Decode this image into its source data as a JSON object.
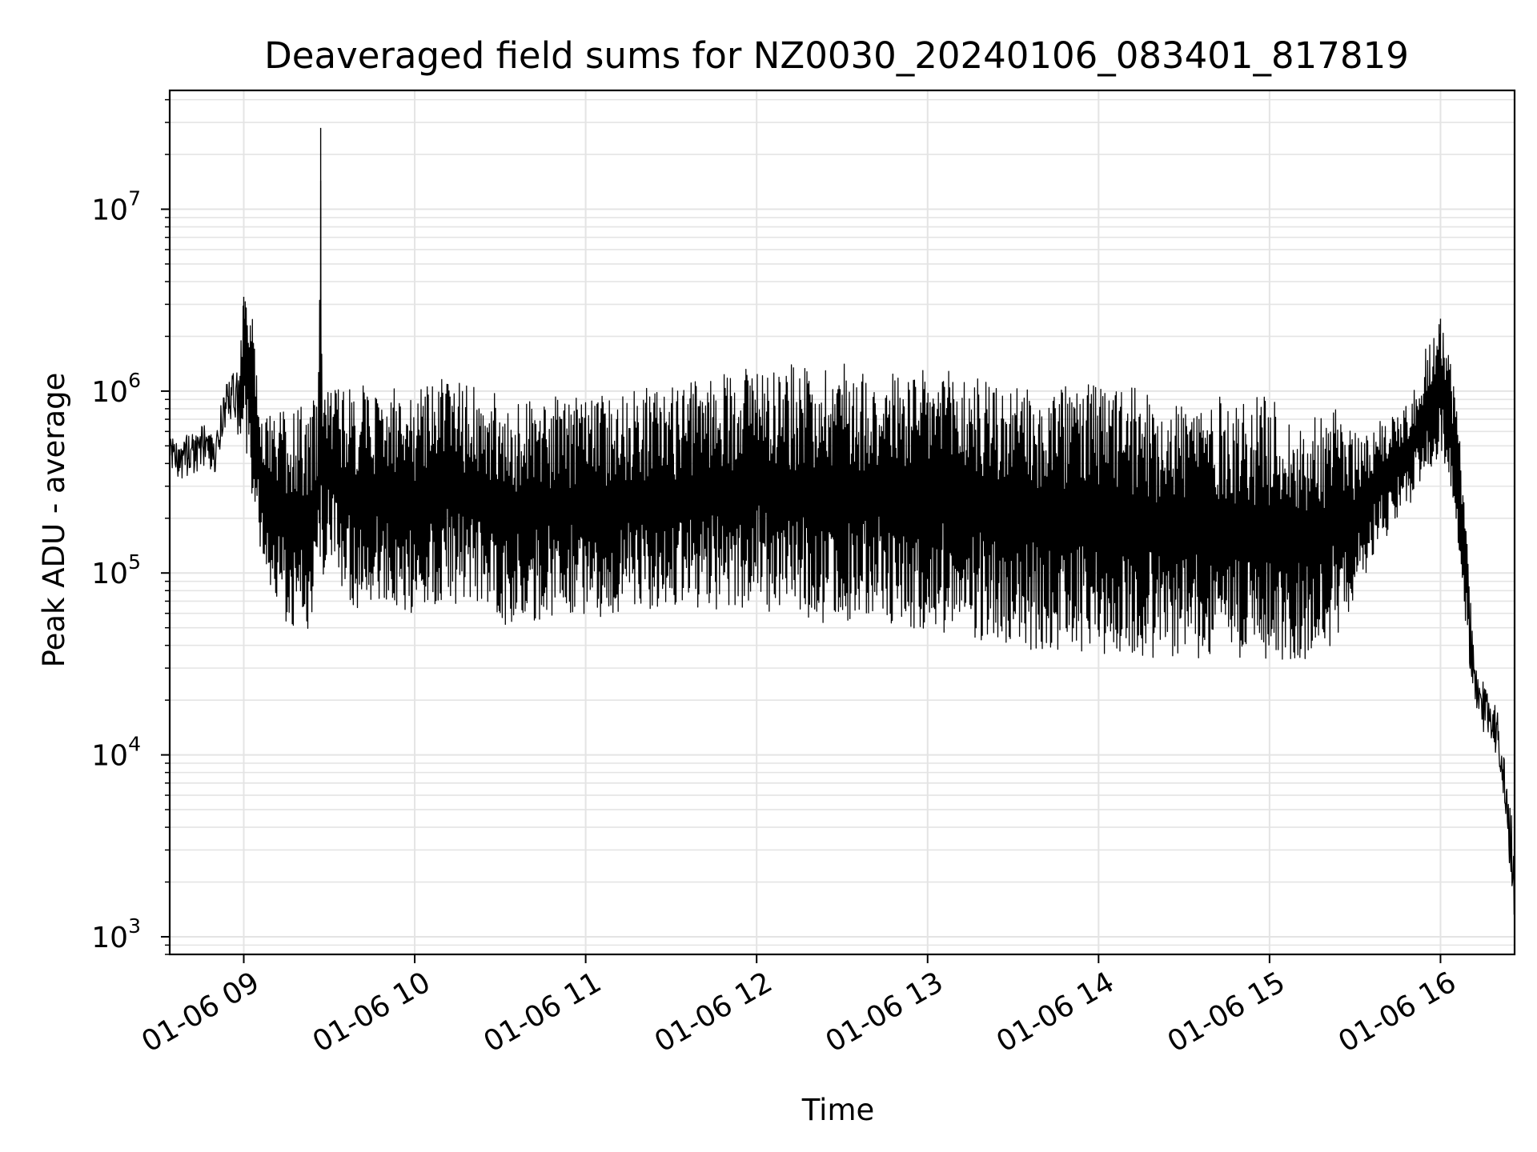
{
  "chart_data": {
    "type": "line",
    "title": "Deaveraged field sums for NZ0030_20240106_083401_817819",
    "xlabel": "Time",
    "ylabel": "Peak ADU - average",
    "yscale": "log",
    "ylim": [
      800,
      45000000
    ],
    "xlim": [
      "2024-01-06T08:34:01",
      "2024-01-06T16:26:00"
    ],
    "grid": true,
    "line_color": "#000000",
    "x_ticks": [
      {
        "value": "2024-01-06T09:00",
        "label": "01-06 09"
      },
      {
        "value": "2024-01-06T10:00",
        "label": "01-06 10"
      },
      {
        "value": "2024-01-06T11:00",
        "label": "01-06 11"
      },
      {
        "value": "2024-01-06T12:00",
        "label": "01-06 12"
      },
      {
        "value": "2024-01-06T13:00",
        "label": "01-06 13"
      },
      {
        "value": "2024-01-06T14:00",
        "label": "01-06 14"
      },
      {
        "value": "2024-01-06T15:00",
        "label": "01-06 15"
      },
      {
        "value": "2024-01-06T16:00",
        "label": "01-06 16"
      }
    ],
    "y_ticks": [
      {
        "value": 1000,
        "base": "10",
        "exp": "3"
      },
      {
        "value": 10000,
        "base": "10",
        "exp": "4"
      },
      {
        "value": 100000,
        "base": "10",
        "exp": "5"
      },
      {
        "value": 1000000,
        "base": "10",
        "exp": "6"
      },
      {
        "value": 10000000,
        "base": "10",
        "exp": "7"
      }
    ],
    "series": [
      {
        "x": [
          "2024-01-06T08:34",
          "2024-01-06T08:38",
          "2024-01-06T08:42",
          "2024-01-06T08:46",
          "2024-01-06T08:50",
          "2024-01-06T08:54",
          "2024-01-06T08:58",
          "2024-01-06T09:00",
          "2024-01-06T09:03",
          "2024-01-06T09:06",
          "2024-01-06T09:10",
          "2024-01-06T09:14",
          "2024-01-06T09:18",
          "2024-01-06T09:22",
          "2024-01-06T09:26",
          "2024-01-06T09:27",
          "2024-01-06T09:28",
          "2024-01-06T09:30",
          "2024-01-06T09:35",
          "2024-01-06T09:40",
          "2024-01-06T09:45",
          "2024-01-06T09:50",
          "2024-01-06T09:55",
          "2024-01-06T10:00",
          "2024-01-06T10:10",
          "2024-01-06T10:20",
          "2024-01-06T10:30",
          "2024-01-06T10:40",
          "2024-01-06T10:50",
          "2024-01-06T11:00",
          "2024-01-06T11:10",
          "2024-01-06T11:20",
          "2024-01-06T11:30",
          "2024-01-06T11:40",
          "2024-01-06T11:50",
          "2024-01-06T12:00",
          "2024-01-06T12:10",
          "2024-01-06T12:20",
          "2024-01-06T12:30",
          "2024-01-06T12:40",
          "2024-01-06T12:50",
          "2024-01-06T13:00",
          "2024-01-06T13:10",
          "2024-01-06T13:20",
          "2024-01-06T13:30",
          "2024-01-06T13:40",
          "2024-01-06T13:50",
          "2024-01-06T14:00",
          "2024-01-06T14:10",
          "2024-01-06T14:20",
          "2024-01-06T14:30",
          "2024-01-06T14:40",
          "2024-01-06T14:50",
          "2024-01-06T15:00",
          "2024-01-06T15:10",
          "2024-01-06T15:20",
          "2024-01-06T15:30",
          "2024-01-06T15:40",
          "2024-01-06T15:50",
          "2024-01-06T15:55",
          "2024-01-06T16:00",
          "2024-01-06T16:03",
          "2024-01-06T16:06",
          "2024-01-06T16:09",
          "2024-01-06T16:12",
          "2024-01-06T16:15",
          "2024-01-06T16:18",
          "2024-01-06T16:21",
          "2024-01-06T16:24",
          "2024-01-06T16:26"
        ],
        "upper": [
          620000,
          560000,
          600000,
          650000,
          640000,
          1100000,
          1500000,
          3300000,
          2600000,
          700000,
          750000,
          780000,
          820000,
          860000,
          900000,
          28000000,
          950000,
          1100000,
          1050000,
          1100000,
          1050000,
          1000000,
          1100000,
          1000000,
          1200000,
          1100000,
          950000,
          900000,
          950000,
          900000,
          1000000,
          1050000,
          1050000,
          1150000,
          1300000,
          1500000,
          1400000,
          1400000,
          1500000,
          1300000,
          1300000,
          1300000,
          1300000,
          1200000,
          1050000,
          1000000,
          1100000,
          1100000,
          1050000,
          1000000,
          900000,
          950000,
          900000,
          950000,
          650000,
          900000,
          600000,
          700000,
          950000,
          1800000,
          2500000,
          1800000,
          750000,
          200000,
          32000,
          28000,
          22000,
          16000,
          6000,
          3500
        ],
        "lower": [
          380000,
          320000,
          350000,
          380000,
          350000,
          700000,
          500000,
          600000,
          250000,
          120000,
          80000,
          55000,
          50000,
          45000,
          70000,
          70000,
          80000,
          120000,
          80000,
          60000,
          70000,
          55000,
          60000,
          60000,
          70000,
          65000,
          50000,
          55000,
          55000,
          60000,
          55000,
          60000,
          60000,
          65000,
          60000,
          70000,
          50000,
          55000,
          50000,
          55000,
          50000,
          48000,
          45000,
          42000,
          36000,
          38000,
          38000,
          36000,
          35000,
          34000,
          34000,
          34000,
          34000,
          34000,
          33000,
          35000,
          70000,
          150000,
          250000,
          350000,
          400000,
          350000,
          150000,
          50000,
          14000,
          13000,
          12000,
          8000,
          2500,
          1000
        ],
        "notable_spikes": [
          {
            "x": "2024-01-06T09:27",
            "y": 28000000
          },
          {
            "x": "2024-01-06T09:00",
            "y": 3300000
          },
          {
            "x": "2024-01-06T16:00",
            "y": 2500000
          }
        ]
      }
    ]
  }
}
